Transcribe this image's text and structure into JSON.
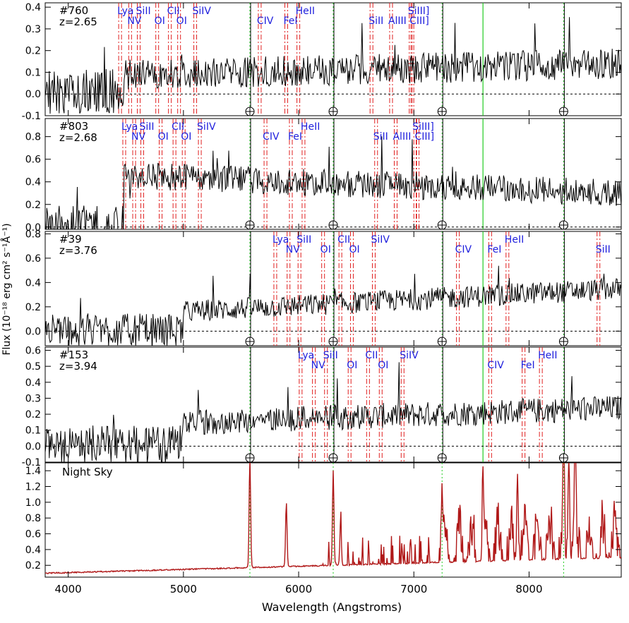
{
  "figure": {
    "xlabel": "Wavelength (Angstroms)",
    "ylabel": "Flux (10⁻¹⁸ erg cm² s⁻¹Å⁻¹)"
  },
  "colors": {
    "spectrum": "#000000",
    "sky": "#b01818",
    "line_marker": "#e02020",
    "sky_marker": "#22cc22",
    "label": "#2020dd",
    "zero_line": "#000000"
  },
  "chart_data": [
    {
      "type": "line",
      "panel": "#760",
      "id_label": "#760",
      "z_label": "z=2.65",
      "redshift": 2.65,
      "seed": 760,
      "level": 0.08,
      "trend": 0.06,
      "noise": 0.07,
      "drop_below": 4480,
      "ylim": [
        -0.1,
        0.42
      ],
      "yticks": [
        -0.1,
        0.0,
        0.1,
        0.2,
        0.3,
        0.4
      ],
      "ytick_labels": [
        "-0.1",
        "0.0",
        "0.1",
        "0.2",
        "0.3",
        "0.4"
      ],
      "lines": [
        {
          "name": "Lya",
          "x": 4438,
          "row": 0
        },
        {
          "name": "NV",
          "x": 4525,
          "row": 1
        },
        {
          "name": "SiII",
          "x": 4600,
          "row": 0
        },
        {
          "name": "OI",
          "x": 4760,
          "row": 1
        },
        {
          "name": "CII",
          "x": 4870,
          "row": 0
        },
        {
          "name": "OI",
          "x": 4950,
          "row": 1
        },
        {
          "name": "SiIV",
          "x": 5090,
          "row": 0
        },
        {
          "name": "CIV",
          "x": 5650,
          "row": 1
        },
        {
          "name": "FeI",
          "x": 5880,
          "row": 1
        },
        {
          "name": "HeII",
          "x": 5985,
          "row": 0
        },
        {
          "name": "SiII",
          "x": 6620,
          "row": 1
        },
        {
          "name": "AlIII",
          "x": 6790,
          "row": 1
        },
        {
          "name": "SiIII]",
          "x": 6960,
          "row": 0
        },
        {
          "name": "CIII]",
          "x": 6975,
          "row": 1
        }
      ]
    },
    {
      "type": "line",
      "panel": "#803",
      "id_label": "#803",
      "z_label": "z=2.68",
      "redshift": 2.68,
      "seed": 803,
      "level": 0.48,
      "trend": -0.18,
      "noise": 0.12,
      "drop_below": 4480,
      "ylim": [
        -0.02,
        0.96
      ],
      "yticks": [
        0.0,
        0.2,
        0.4,
        0.6,
        0.8
      ],
      "ytick_labels": [
        "0.0",
        "0.2",
        "0.4",
        "0.6",
        "0.8"
      ],
      "lines": [
        {
          "name": "Lya",
          "x": 4474,
          "row": 0
        },
        {
          "name": "NV",
          "x": 4560,
          "row": 1
        },
        {
          "name": "SiII",
          "x": 4630,
          "row": 0
        },
        {
          "name": "OI",
          "x": 4790,
          "row": 1
        },
        {
          "name": "CII",
          "x": 4910,
          "row": 0
        },
        {
          "name": "OI",
          "x": 4990,
          "row": 1
        },
        {
          "name": "SiIV",
          "x": 5130,
          "row": 0
        },
        {
          "name": "CIV",
          "x": 5700,
          "row": 1
        },
        {
          "name": "FeI",
          "x": 5920,
          "row": 1
        },
        {
          "name": "HeII",
          "x": 6030,
          "row": 0
        },
        {
          "name": "SiII",
          "x": 6660,
          "row": 1
        },
        {
          "name": "AlIII",
          "x": 6830,
          "row": 1
        },
        {
          "name": "SiIII]",
          "x": 7000,
          "row": 0
        },
        {
          "name": "CIII]",
          "x": 7020,
          "row": 1
        }
      ]
    },
    {
      "type": "line",
      "panel": "#39",
      "id_label": "#39",
      "z_label": "z=3.76",
      "redshift": 3.76,
      "seed": 39,
      "level": 0.1,
      "trend": 0.25,
      "noise": 0.09,
      "drop_below": 5000,
      "ylim": [
        -0.12,
        0.82
      ],
      "yticks": [
        0.0,
        0.2,
        0.4,
        0.6,
        0.8
      ],
      "ytick_labels": [
        "0.0",
        "0.2",
        "0.4",
        "0.6",
        "0.8"
      ],
      "lines": [
        {
          "name": "Lya",
          "x": 5785,
          "row": 0
        },
        {
          "name": "NV",
          "x": 5900,
          "row": 1
        },
        {
          "name": "SiII",
          "x": 5995,
          "row": 0
        },
        {
          "name": "OI",
          "x": 6200,
          "row": 1
        },
        {
          "name": "CII",
          "x": 6350,
          "row": 0
        },
        {
          "name": "OI",
          "x": 6450,
          "row": 1
        },
        {
          "name": "SiIV",
          "x": 6640,
          "row": 0
        },
        {
          "name": "CIV",
          "x": 7370,
          "row": 1
        },
        {
          "name": "FeI",
          "x": 7650,
          "row": 1
        },
        {
          "name": "HeII",
          "x": 7800,
          "row": 0
        },
        {
          "name": "SiII",
          "x": 8590,
          "row": 1
        }
      ]
    },
    {
      "type": "line",
      "panel": "#153",
      "id_label": "#153",
      "z_label": "z=3.94",
      "redshift": 3.94,
      "seed": 153,
      "level": 0.12,
      "trend": 0.12,
      "noise": 0.08,
      "drop_below": 5000,
      "ylim": [
        -0.1,
        0.62
      ],
      "yticks": [
        -0.1,
        0.0,
        0.1,
        0.2,
        0.3,
        0.4,
        0.5,
        0.6
      ],
      "ytick_labels": [
        "-0.1",
        "0.0",
        "0.1",
        "0.2",
        "0.3",
        "0.4",
        "0.5",
        "0.6"
      ],
      "lines": [
        {
          "name": "Lya",
          "x": 6005,
          "row": 0
        },
        {
          "name": "NV",
          "x": 6120,
          "row": 1
        },
        {
          "name": "SiII",
          "x": 6225,
          "row": 0
        },
        {
          "name": "OI",
          "x": 6430,
          "row": 1
        },
        {
          "name": "CII",
          "x": 6590,
          "row": 0
        },
        {
          "name": "OI",
          "x": 6700,
          "row": 1
        },
        {
          "name": "SiIV",
          "x": 6890,
          "row": 0
        },
        {
          "name": "CIV",
          "x": 7650,
          "row": 1
        },
        {
          "name": "FeI",
          "x": 7940,
          "row": 1
        },
        {
          "name": "HeII",
          "x": 8090,
          "row": 0
        }
      ]
    },
    {
      "type": "line",
      "panel": "Night Sky",
      "id_label": "Night Sky",
      "seed": 999,
      "ylim": [
        0.05,
        1.5
      ],
      "yticks": [
        0.2,
        0.4,
        0.6,
        0.8,
        1.0,
        1.2,
        1.4
      ],
      "ytick_labels": [
        "0.2",
        "0.4",
        "0.6",
        "0.8",
        "1.0",
        "1.2",
        "1.4"
      ],
      "emission_lines": [
        {
          "x": 5577,
          "height": 1.42
        },
        {
          "x": 5893,
          "height": 0.82
        },
        {
          "x": 6300,
          "height": 1.2
        },
        {
          "x": 6364,
          "height": 0.55
        },
        {
          "x": 7245,
          "height": 1.0
        },
        {
          "x": 7600,
          "height": 0.9
        },
        {
          "x": 7900,
          "height": 1.1
        },
        {
          "x": 8300,
          "height": 1.3
        },
        {
          "x": 8345,
          "height": 1.4
        },
        {
          "x": 8400,
          "height": 1.2
        }
      ]
    }
  ],
  "shared_axes": {
    "xlim": [
      3800,
      8800
    ],
    "xticks": [
      4000,
      5000,
      6000,
      7000,
      8000
    ],
    "xtick_labels": [
      "4000",
      "5000",
      "6000",
      "7000",
      "8000"
    ],
    "sky_line_markers": [
      5577,
      6300,
      7245,
      8300
    ],
    "telluric_marker": 7600
  }
}
